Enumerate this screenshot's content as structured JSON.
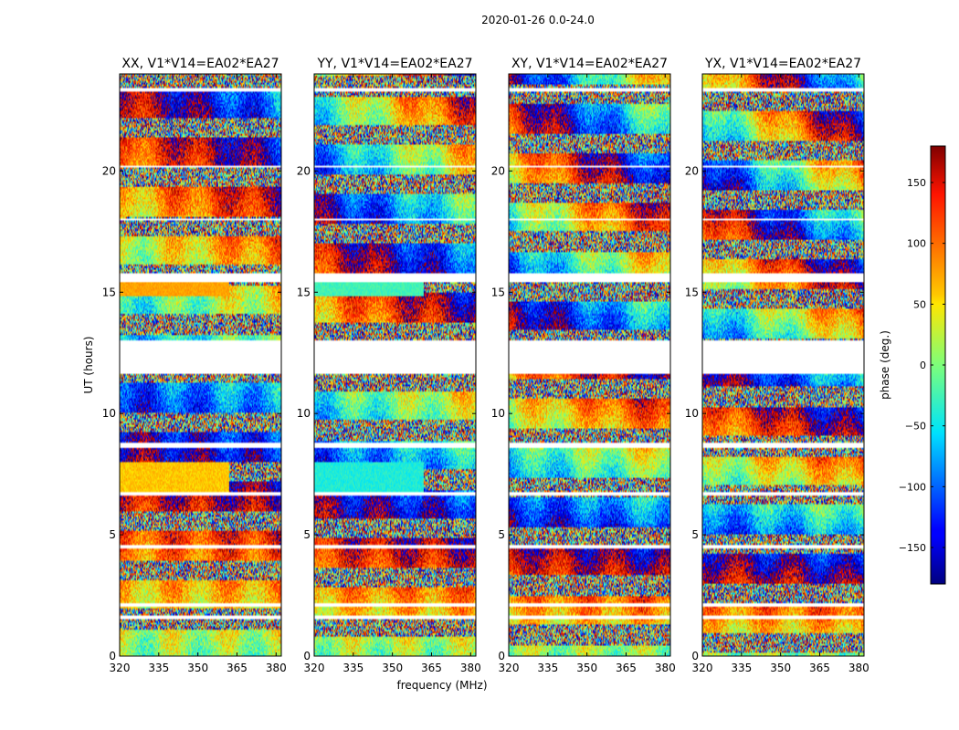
{
  "chart_data": {
    "type": "heatmap",
    "title": "2020-01-26 0.0-24.0",
    "xlabel": "frequency (MHz)",
    "ylabel": "UT (hours)",
    "xlim": [
      320,
      382
    ],
    "ylim": [
      0,
      24
    ],
    "xticks": [
      320,
      335,
      350,
      365,
      380
    ],
    "yticks": [
      0,
      5,
      10,
      15,
      20
    ],
    "panels": [
      {
        "name": "xx",
        "title": "XX, V1*V14=EA02*EA27"
      },
      {
        "name": "yy",
        "title": "YY, V1*V14=EA02*EA27"
      },
      {
        "name": "xy",
        "title": "XY, V1*V14=EA02*EA27"
      },
      {
        "name": "yx",
        "title": "YX, V1*V14=EA02*EA27"
      }
    ],
    "data_gaps_hours": [
      [
        1.55,
        1.7
      ],
      [
        2.05,
        2.15
      ],
      [
        4.45,
        4.6
      ],
      [
        6.6,
        6.8
      ],
      [
        8.55,
        8.8
      ],
      [
        11.6,
        13.05
      ],
      [
        15.45,
        15.75
      ],
      [
        18.0,
        18.05
      ],
      [
        20.15,
        20.22
      ],
      [
        23.3,
        23.4
      ]
    ],
    "colorbar": {
      "label": "phase (deg.)",
      "range": [
        -180,
        180
      ],
      "ticks": [
        150,
        100,
        50,
        0,
        -50,
        -100,
        -150
      ],
      "ticklabels": [
        "150",
        "100",
        "50",
        "0",
        "−50",
        "−100",
        "−150"
      ]
    }
  }
}
